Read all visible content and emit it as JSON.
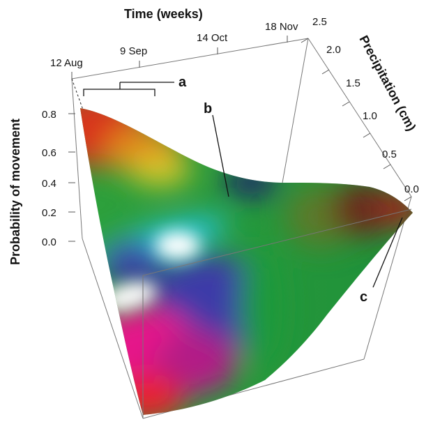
{
  "chart_data": {
    "type": "surface3d",
    "axes": {
      "x": {
        "title": "Time (weeks)",
        "ticks": [
          "12 Aug",
          "9 Sep",
          "14 Oct",
          "18 Nov"
        ]
      },
      "y": {
        "title": "Precipitation (cm)",
        "ticks": [
          "0.0",
          "0.5",
          "1.0",
          "1.5",
          "2.0",
          "2.5"
        ],
        "range": [
          0,
          2.5
        ]
      },
      "z": {
        "title": "Probability of movement",
        "ticks": [
          "0.0",
          "0.2",
          "0.4",
          "0.6",
          "0.8"
        ],
        "range": [
          0,
          0.8
        ]
      }
    },
    "annotations": [
      "a",
      "b",
      "c"
    ],
    "surface_edges": {
      "at_zero_precipitation": [
        {
          "time": "12 Aug",
          "probability": 0.82
        },
        {
          "time": "9 Sep",
          "probability": 0.7
        },
        {
          "time": "14 Oct",
          "probability": 0.45
        },
        {
          "time": "18 Nov",
          "probability": 0.35
        }
      ],
      "at_max_precipitation": [
        {
          "time": "12 Aug",
          "probability": 0.0
        },
        {
          "time": "14 Oct",
          "probability": 0.05
        },
        {
          "time": "18 Nov",
          "probability": 0.02
        }
      ]
    },
    "colors": {
      "high": "#d32a1a",
      "mid": "#1e9a3a",
      "low_wet": "#e8188c",
      "peak_highlight": "#ffffff"
    }
  }
}
